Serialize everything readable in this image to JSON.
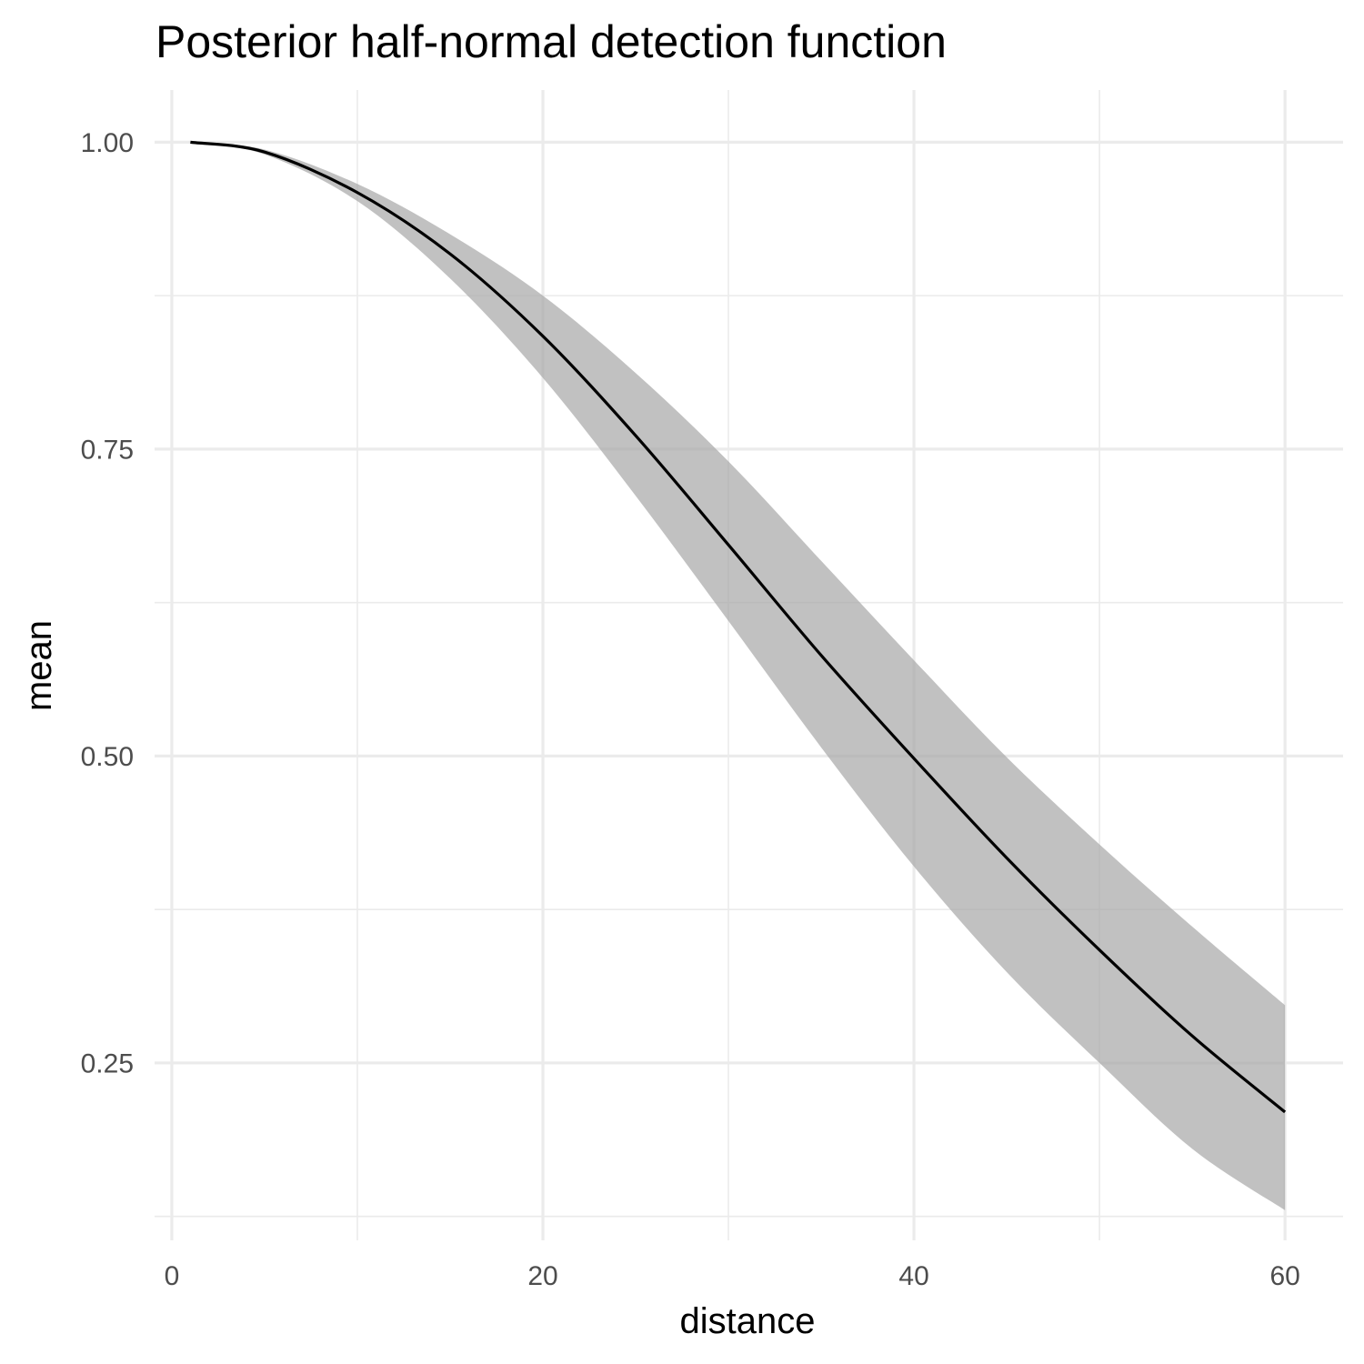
{
  "chart_data": {
    "type": "line",
    "title": "Posterior half-normal detection function",
    "xlabel": "distance",
    "ylabel": "mean",
    "xlim": [
      -0.93,
      63.13
    ],
    "ylim": [
      0.1055,
      1.0425
    ],
    "x_ticks": [
      0,
      20,
      40,
      60
    ],
    "x_tick_labels": [
      "0",
      "20",
      "40",
      "60"
    ],
    "x_minor_ticks": [
      10,
      30,
      50
    ],
    "y_ticks": [
      0.25,
      0.5,
      0.75,
      1.0
    ],
    "y_tick_labels": [
      "0.25",
      "0.50",
      "0.75",
      "1.00"
    ],
    "y_minor_ticks": [
      0.125,
      0.375,
      0.625,
      0.875
    ],
    "grid": true,
    "legend": "none",
    "colors": {
      "line": "#000000",
      "band": "#a6a6a6",
      "grid": "#ebebeb"
    },
    "series": [
      {
        "x": [
          1,
          5,
          10,
          15,
          20,
          25,
          30,
          35,
          40,
          45,
          50,
          55,
          60
        ],
        "mean": [
          1.0,
          0.992,
          0.959,
          0.909,
          0.842,
          0.761,
          0.672,
          0.582,
          0.498,
          0.417,
          0.342,
          0.272,
          0.21
        ],
        "lower": [
          1.0,
          0.99,
          0.952,
          0.889,
          0.808,
          0.712,
          0.61,
          0.507,
          0.41,
          0.324,
          0.25,
          0.18,
          0.13
        ],
        "upper": [
          1.0,
          0.994,
          0.966,
          0.925,
          0.875,
          0.812,
          0.74,
          0.659,
          0.578,
          0.499,
          0.428,
          0.361,
          0.297
        ]
      }
    ]
  }
}
